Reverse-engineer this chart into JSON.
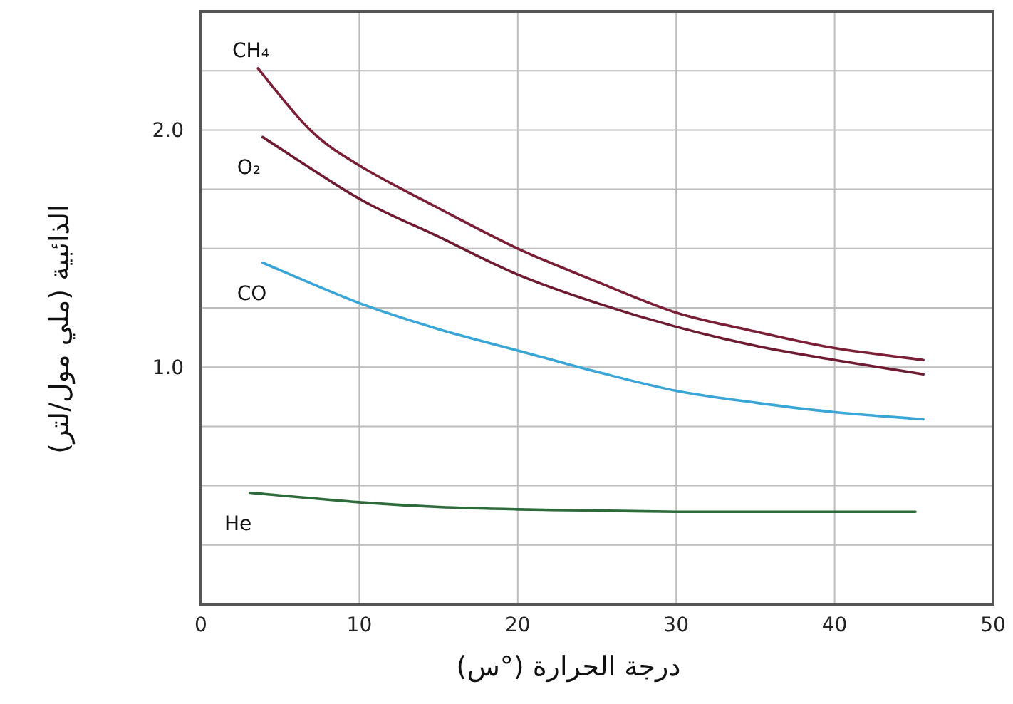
{
  "chart_data": {
    "type": "line",
    "xlabel": "درجة الحرارة (°س)",
    "ylabel": "الذائبية (ملي مول/لتر)",
    "xlim": [
      0,
      50
    ],
    "xticks": [
      0,
      10,
      20,
      30,
      40,
      50
    ],
    "ylim": [
      0,
      2.5
    ],
    "yticks": [
      {
        "value": 0.25,
        "label": null
      },
      {
        "value": 0.5,
        "label": null
      },
      {
        "value": 0.75,
        "label": null
      },
      {
        "value": 1.0,
        "label": "1.0"
      },
      {
        "value": 1.25,
        "label": null
      },
      {
        "value": 1.5,
        "label": null
      },
      {
        "value": 1.75,
        "label": null
      },
      {
        "value": 2.0,
        "label": "2.0"
      },
      {
        "value": 2.25,
        "label": null
      }
    ],
    "grid": true,
    "marker": "none",
    "line_style": "solid",
    "series": [
      {
        "name": "CH₄",
        "color": "#7a1f35",
        "x": [
          3.6,
          6.9,
          10,
          15,
          20,
          25,
          30,
          35,
          40,
          45.6
        ],
        "values": [
          2.26,
          2.0,
          1.85,
          1.67,
          1.5,
          1.36,
          1.23,
          1.15,
          1.08,
          1.03
        ]
      },
      {
        "name": "O₂",
        "color": "#6e1a30",
        "x": [
          3.9,
          10,
          15,
          20,
          25,
          30,
          35,
          40,
          45.6
        ],
        "values": [
          1.97,
          1.71,
          1.55,
          1.39,
          1.27,
          1.17,
          1.09,
          1.03,
          0.97
        ]
      },
      {
        "name": "CO",
        "color": "#3aa6d8",
        "x": [
          3.9,
          10,
          15,
          20,
          25,
          30,
          35,
          40,
          45.6
        ],
        "values": [
          1.44,
          1.27,
          1.16,
          1.07,
          0.98,
          0.9,
          0.85,
          0.81,
          0.78
        ]
      },
      {
        "name": "He",
        "color": "#2e6b3a",
        "x": [
          3.1,
          10,
          15,
          20,
          25,
          30,
          35,
          40,
          45.1
        ],
        "values": [
          0.47,
          0.43,
          0.41,
          0.4,
          0.395,
          0.39,
          0.39,
          0.39,
          0.39
        ]
      }
    ]
  }
}
